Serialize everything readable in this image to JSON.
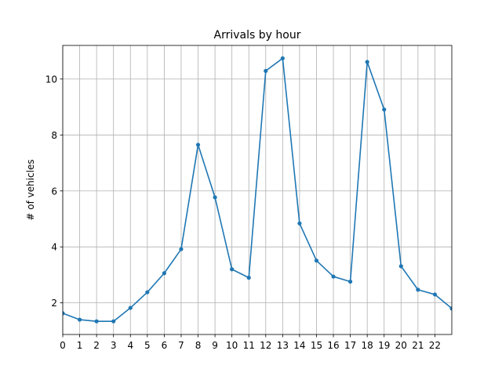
{
  "chart_data": {
    "type": "line",
    "title": "Arrivals by hour",
    "xlabel": "",
    "ylabel": "# of vehicles",
    "x": [
      0,
      1,
      2,
      3,
      4,
      5,
      6,
      7,
      8,
      9,
      10,
      11,
      12,
      13,
      14,
      15,
      16,
      17,
      18,
      19,
      20,
      21,
      22,
      23
    ],
    "xticks": [
      0,
      1,
      2,
      3,
      4,
      5,
      6,
      7,
      8,
      9,
      10,
      11,
      12,
      13,
      14,
      15,
      16,
      17,
      18,
      19,
      20,
      21,
      22
    ],
    "yticks": [
      2,
      4,
      6,
      8,
      10
    ],
    "xlim": [
      0,
      23
    ],
    "ylim": [
      0.87,
      11.2
    ],
    "grid": true,
    "series": [
      {
        "name": "",
        "color": "#1f77b4",
        "values": [
          1.63,
          1.4,
          1.34,
          1.34,
          1.82,
          2.38,
          3.06,
          3.92,
          7.65,
          5.77,
          3.2,
          2.9,
          10.29,
          10.74,
          4.84,
          3.51,
          2.94,
          2.76,
          10.61,
          8.91,
          3.31,
          2.47,
          2.3,
          1.8
        ]
      }
    ]
  }
}
